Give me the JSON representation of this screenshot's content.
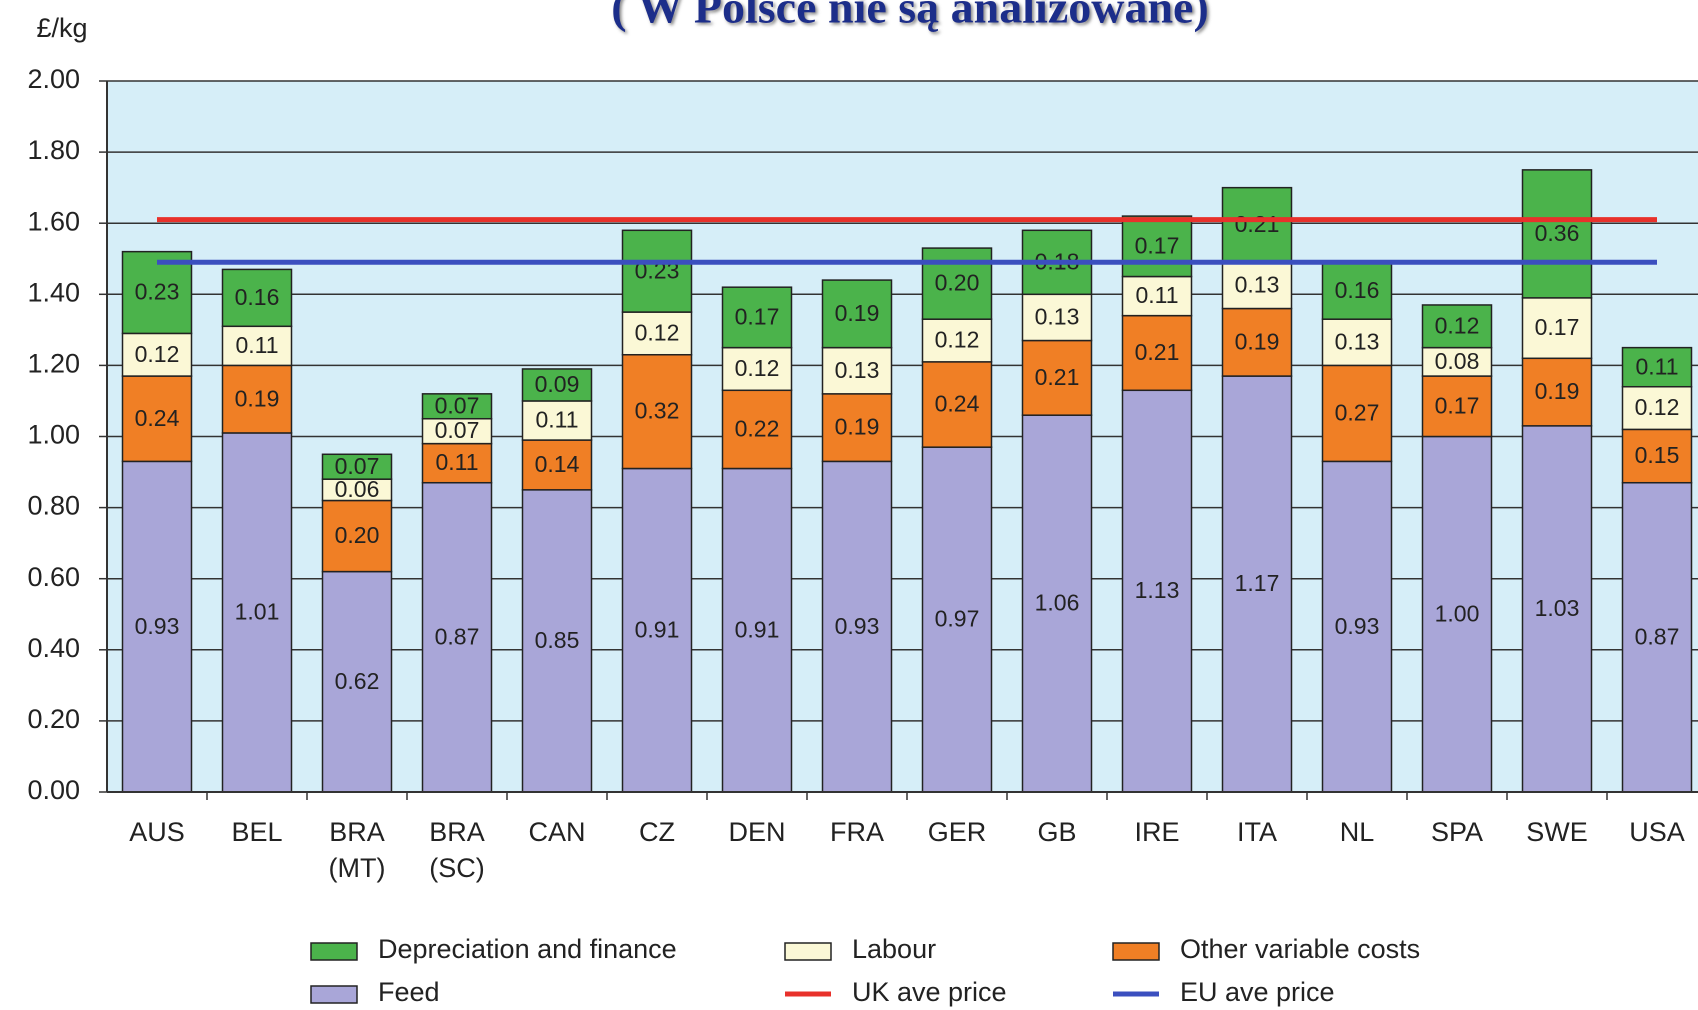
{
  "chart_data": {
    "type": "stacked_bar",
    "title": "( W Polsce nie są  analizowane)",
    "y_axis_label": "£/kg",
    "categories": [
      "AUS",
      "BEL",
      "BRA (MT)",
      "BRA (SC)",
      "CAN",
      "CZ",
      "DEN",
      "FRA",
      "GER",
      "GB",
      "IRE",
      "ITA",
      "NL",
      "SPA",
      "SWE",
      "USA"
    ],
    "series": [
      {
        "name": "Feed",
        "color": "#a9a6d8",
        "values": [
          0.93,
          1.01,
          0.62,
          0.87,
          0.85,
          0.91,
          0.91,
          0.93,
          0.97,
          1.06,
          1.13,
          1.17,
          0.93,
          1.0,
          1.03,
          0.87
        ],
        "value_labels": [
          "0.93",
          "1.01",
          "0.62",
          "0.87",
          "0.85",
          "0.91",
          "0.91",
          "0.93",
          "0.97",
          "1.06",
          "1.13",
          "1.17",
          "0.93",
          "1.00",
          "1.03",
          "0.87"
        ]
      },
      {
        "name": "Other variable costs",
        "color": "#f07f25",
        "values": [
          0.24,
          0.19,
          0.2,
          0.11,
          0.14,
          0.32,
          0.22,
          0.19,
          0.24,
          0.21,
          0.21,
          0.19,
          0.27,
          0.17,
          0.19,
          0.15
        ],
        "value_labels": [
          "0.24",
          "0.19",
          "0.20",
          "0.11",
          "0.14",
          "0.32",
          "0.22",
          "0.19",
          "0.24",
          "0.21",
          "0.21",
          "0.19",
          "0.27",
          "0.17",
          "0.19",
          "0.15"
        ]
      },
      {
        "name": "Labour",
        "color": "#fbf8d6",
        "values": [
          0.12,
          0.11,
          0.06,
          0.07,
          0.11,
          0.12,
          0.12,
          0.13,
          0.12,
          0.13,
          0.11,
          0.13,
          0.13,
          0.08,
          0.17,
          0.12
        ],
        "value_labels": [
          "0.12",
          "0.11",
          "0.06",
          "0.07",
          "0.11",
          "0.12",
          "0.12",
          "0.13",
          "0.12",
          "0.13",
          "0.11",
          "0.13",
          "0.13",
          "0.08",
          "0.17",
          "0.12"
        ]
      },
      {
        "name": "Depreciation and finance",
        "color": "#4bb34b",
        "values": [
          0.23,
          0.16,
          0.07,
          0.07,
          0.09,
          0.23,
          0.17,
          0.19,
          0.2,
          0.18,
          0.17,
          0.21,
          0.16,
          0.12,
          0.36,
          0.11
        ],
        "value_labels": [
          "0.23",
          "0.16",
          "0.07",
          "0.07",
          "0.09",
          "0.23",
          "0.17",
          "0.19",
          "0.20",
          "0.18",
          "0.17",
          "0.21",
          "0.16",
          "0.12",
          "0.36",
          "0.11"
        ]
      }
    ],
    "reference_lines": [
      {
        "name": "UK ave price",
        "color": "#e8312b",
        "value": 1.61
      },
      {
        "name": "EU ave price",
        "color": "#3b4fbf",
        "value": 1.49
      }
    ],
    "ylim": [
      0,
      2
    ],
    "yticks": [
      {
        "value": 0,
        "label": "0.00"
      },
      {
        "value": 0.2,
        "label": "0.20"
      },
      {
        "value": 0.4,
        "label": "0.40"
      },
      {
        "value": 0.6,
        "label": "0.60"
      },
      {
        "value": 0.8,
        "label": "0.80"
      },
      {
        "value": 1,
        "label": "1.00"
      },
      {
        "value": 1.2,
        "label": "1.20"
      },
      {
        "value": 1.4,
        "label": "1.40"
      },
      {
        "value": 1.6,
        "label": "1.60"
      },
      {
        "value": 1.8,
        "label": "1.80"
      },
      {
        "value": 2,
        "label": "2.00"
      }
    ],
    "grid": true
  }
}
